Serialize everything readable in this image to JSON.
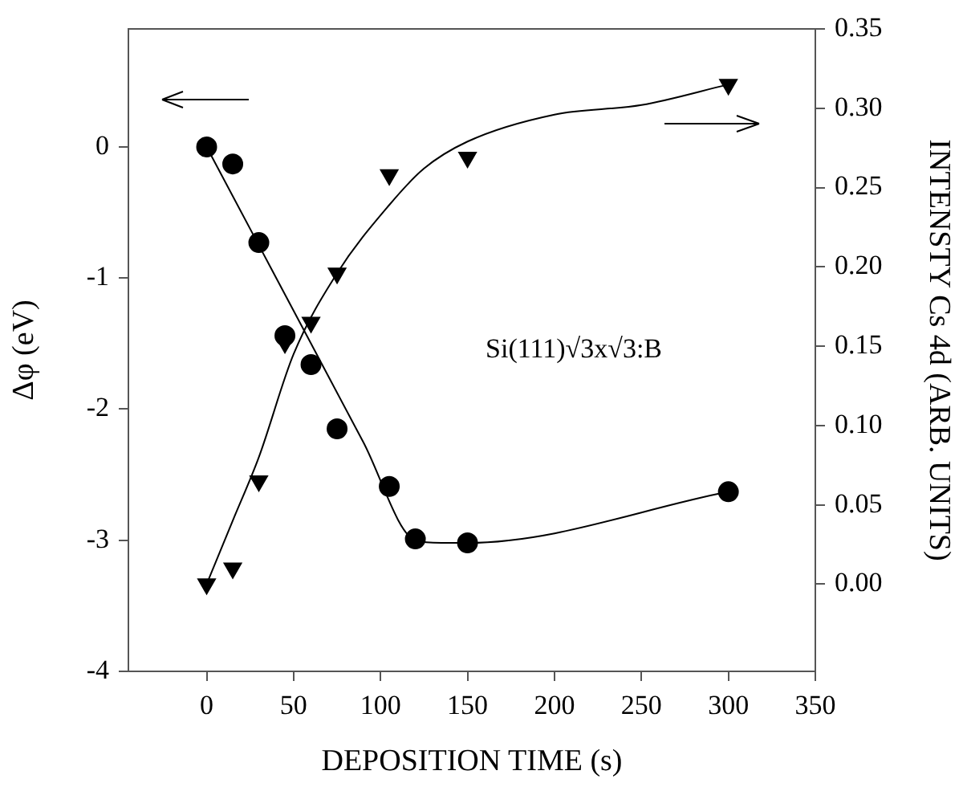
{
  "chart_data": {
    "type": "scatter",
    "xlabel": "DEPOSITION TIME (s)",
    "ylabel": "Δφ (eV)",
    "y2label": "INTENSTY Cs 4d (ARB. UNITS)",
    "xlim": [
      -45,
      350
    ],
    "xticks": [
      0,
      50,
      100,
      150,
      200,
      250,
      300,
      350
    ],
    "ylim": [
      -4,
      0.9
    ],
    "yticks": [
      -4,
      -3,
      -2,
      -1,
      0
    ],
    "y2lim": [
      -0.055,
      0.35
    ],
    "y2ticks": [
      {
        "value": 0,
        "label": "0.00"
      },
      {
        "value": 0.05,
        "label": "0.05"
      },
      {
        "value": 0.1,
        "label": "0.10"
      },
      {
        "value": 0.15,
        "label": "0.15"
      },
      {
        "value": 0.2,
        "label": "0.20"
      },
      {
        "value": 0.25,
        "label": "0.25"
      },
      {
        "value": 0.3,
        "label": "0.30"
      },
      {
        "value": 0.35,
        "label": "0.35"
      }
    ],
    "grid": false,
    "legend": false,
    "annotations": [
      "Si(111)√3x√3:B"
    ],
    "series": [
      {
        "marker": "circle",
        "color": "#000000",
        "x": [
          0,
          15,
          30,
          45,
          60,
          75,
          105,
          120,
          150,
          300
        ],
        "values": [
          0,
          -0.13,
          -0.73,
          -1.44,
          -1.66,
          -2.15,
          -2.59,
          -2.99,
          -3.02,
          -2.63
        ]
      },
      {
        "marker": "triangle",
        "axis": "y2",
        "color": "#000000",
        "x": [
          0,
          15,
          30,
          45,
          60,
          75,
          105,
          150,
          300
        ],
        "values": [
          0,
          0.01,
          0.065,
          0.152,
          0.165,
          0.196,
          0.258,
          0.269,
          0.315
        ]
      },
      {
        "type": "line",
        "marker": "none",
        "color": "#000000",
        "x": [
          0,
          30,
          60,
          90,
          120,
          135,
          150,
          300
        ],
        "values": [
          0,
          -0.75,
          -1.5,
          -2.25,
          -3.0,
          -3.02,
          -3.02,
          -2.63
        ]
      },
      {
        "type": "line",
        "marker": "none",
        "axis": "y2",
        "color": "#000000",
        "x": [
          0,
          15,
          30,
          50,
          75,
          105,
          125,
          150,
          200,
          250,
          300
        ],
        "values": [
          0,
          0.04,
          0.08,
          0.145,
          0.196,
          0.239,
          0.262,
          0.279,
          0.296,
          0.302,
          0.315
        ]
      }
    ]
  }
}
